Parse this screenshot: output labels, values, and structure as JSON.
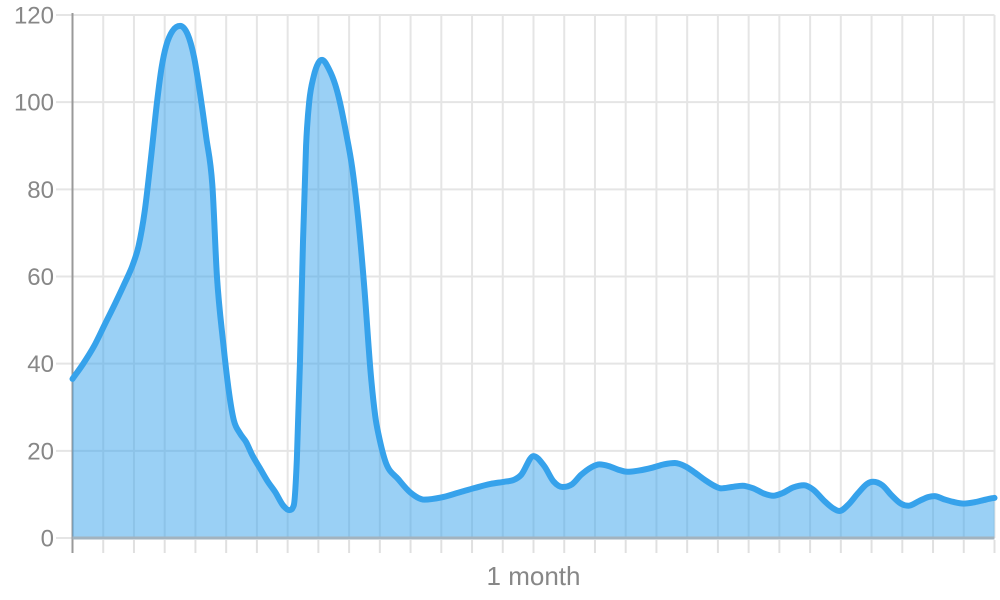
{
  "page": {
    "background": "#ffffff"
  },
  "colors": {
    "line": "#36a2eb",
    "fill_opacity": 0.5,
    "grid": "#e5e5e5",
    "below_axis_tick": "#e0e0e0",
    "y_axis_line": "#999999",
    "zero_line": "#a2b3bf",
    "label_text": "#878787"
  },
  "chart_data": {
    "type": "area",
    "title": "",
    "xlabel": "1 month",
    "ylabel": "",
    "ylim": [
      0,
      120
    ],
    "y_ticks": [
      0,
      20,
      40,
      60,
      80,
      100,
      120
    ],
    "x_domain_days": [
      0,
      30
    ],
    "x_grid_step_days": 1,
    "grid": true,
    "legend": false,
    "series": [
      {
        "points": [
          [
            0,
            36.5
          ],
          [
            0.35,
            40
          ],
          [
            0.7,
            44
          ],
          [
            1.05,
            49
          ],
          [
            1.4,
            54
          ],
          [
            1.7,
            58.5
          ],
          [
            1.95,
            62.5
          ],
          [
            2.15,
            67
          ],
          [
            2.35,
            75
          ],
          [
            2.55,
            87
          ],
          [
            2.75,
            100
          ],
          [
            2.9,
            108
          ],
          [
            3.05,
            113
          ],
          [
            3.25,
            116.3
          ],
          [
            3.5,
            117.5
          ],
          [
            3.75,
            115.5
          ],
          [
            3.95,
            110.5
          ],
          [
            4.15,
            102
          ],
          [
            4.35,
            92
          ],
          [
            4.55,
            81
          ],
          [
            4.7,
            60
          ],
          [
            4.9,
            45
          ],
          [
            5.1,
            33
          ],
          [
            5.25,
            27
          ],
          [
            5.45,
            24
          ],
          [
            5.65,
            22
          ],
          [
            5.85,
            19
          ],
          [
            6.1,
            16
          ],
          [
            6.35,
            13
          ],
          [
            6.6,
            10.5
          ],
          [
            6.85,
            7.5
          ],
          [
            7.05,
            6.4
          ],
          [
            7.2,
            7.5
          ],
          [
            7.3,
            18
          ],
          [
            7.4,
            40
          ],
          [
            7.5,
            68
          ],
          [
            7.6,
            90
          ],
          [
            7.7,
            100
          ],
          [
            7.85,
            106
          ],
          [
            8,
            109
          ],
          [
            8.12,
            109.7
          ],
          [
            8.35,
            107.5
          ],
          [
            8.55,
            104
          ],
          [
            8.7,
            100
          ],
          [
            8.9,
            93
          ],
          [
            9.1,
            85
          ],
          [
            9.3,
            73
          ],
          [
            9.5,
            57
          ],
          [
            9.7,
            38
          ],
          [
            9.85,
            28
          ],
          [
            9.95,
            24
          ],
          [
            10.2,
            17.2
          ],
          [
            10.6,
            13.5
          ],
          [
            11,
            10.4
          ],
          [
            11.45,
            8.8
          ],
          [
            12,
            9.3
          ],
          [
            12.6,
            10.5
          ],
          [
            13.1,
            11.5
          ],
          [
            13.6,
            12.4
          ],
          [
            14.05,
            12.9
          ],
          [
            14.35,
            13.3
          ],
          [
            14.6,
            14.5
          ],
          [
            15,
            18.8
          ],
          [
            15.35,
            16.5
          ],
          [
            15.65,
            13
          ],
          [
            15.95,
            11.7
          ],
          [
            16.25,
            12.3
          ],
          [
            16.55,
            14.5
          ],
          [
            16.9,
            16.3
          ],
          [
            17.15,
            16.9
          ],
          [
            17.45,
            16.5
          ],
          [
            17.75,
            15.7
          ],
          [
            18.05,
            15.2
          ],
          [
            18.45,
            15.5
          ],
          [
            18.85,
            16.1
          ],
          [
            19.25,
            16.9
          ],
          [
            19.6,
            17.2
          ],
          [
            19.95,
            16.4
          ],
          [
            20.25,
            15
          ],
          [
            20.6,
            13.2
          ],
          [
            20.9,
            11.9
          ],
          [
            21.1,
            11.4
          ],
          [
            21.45,
            11.7
          ],
          [
            21.8,
            12
          ],
          [
            22.15,
            11.4
          ],
          [
            22.5,
            10.2
          ],
          [
            22.8,
            9.7
          ],
          [
            23.1,
            10.3
          ],
          [
            23.45,
            11.6
          ],
          [
            23.8,
            12.1
          ],
          [
            24.1,
            11.1
          ],
          [
            24.45,
            8.6
          ],
          [
            24.75,
            6.8
          ],
          [
            24.95,
            6.2
          ],
          [
            25.25,
            7.7
          ],
          [
            25.55,
            10.2
          ],
          [
            25.85,
            12.4
          ],
          [
            26.05,
            12.9
          ],
          [
            26.35,
            12.1
          ],
          [
            26.65,
            9.8
          ],
          [
            26.95,
            7.9
          ],
          [
            27.2,
            7.4
          ],
          [
            27.55,
            8.5
          ],
          [
            27.85,
            9.4
          ],
          [
            28.05,
            9.6
          ],
          [
            28.35,
            8.9
          ],
          [
            28.65,
            8.3
          ],
          [
            29,
            7.9
          ],
          [
            29.35,
            8.2
          ],
          [
            29.65,
            8.7
          ],
          [
            29.9,
            9.1
          ],
          [
            30,
            9.2
          ]
        ]
      }
    ]
  }
}
